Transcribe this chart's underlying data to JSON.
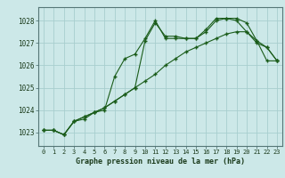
{
  "title": "Graphe pression niveau de la mer (hPa)",
  "xlabel_ticks": [
    "0",
    "1",
    "2",
    "3",
    "4",
    "5",
    "6",
    "7",
    "8",
    "9",
    "10",
    "11",
    "12",
    "13",
    "14",
    "15",
    "16",
    "17",
    "18",
    "19",
    "20",
    "21",
    "22",
    "23"
  ],
  "ylim": [
    1022.4,
    1028.6
  ],
  "xlim": [
    -0.5,
    23.5
  ],
  "yticks": [
    1023,
    1024,
    1025,
    1026,
    1027,
    1028
  ],
  "bg_color": "#cce8e8",
  "line_color": "#1a5c1a",
  "grid_color": "#a8cece",
  "series": [
    [
      1023.1,
      1023.1,
      1022.9,
      1023.5,
      1023.6,
      1023.9,
      1024.0,
      1025.5,
      1026.3,
      1026.5,
      1027.2,
      1028.0,
      1027.2,
      1027.2,
      1027.2,
      1027.2,
      1027.6,
      1028.1,
      1028.1,
      1028.1,
      1027.9,
      1027.1,
      1026.2,
      1026.2
    ],
    [
      1023.1,
      1023.1,
      1022.9,
      1023.5,
      1023.7,
      1023.9,
      1024.1,
      1024.4,
      1024.7,
      1025.0,
      1027.1,
      1027.9,
      1027.3,
      1027.3,
      1027.2,
      1027.2,
      1027.5,
      1028.0,
      1028.1,
      1028.0,
      1027.5,
      1027.0,
      1026.8,
      1026.2
    ],
    [
      1023.1,
      1023.1,
      1022.9,
      1023.5,
      1023.7,
      1023.9,
      1024.1,
      1024.4,
      1024.7,
      1025.0,
      1025.3,
      1025.6,
      1026.0,
      1026.3,
      1026.6,
      1026.8,
      1027.0,
      1027.2,
      1027.4,
      1027.5,
      1027.5,
      1027.1,
      1026.8,
      1026.2
    ]
  ]
}
